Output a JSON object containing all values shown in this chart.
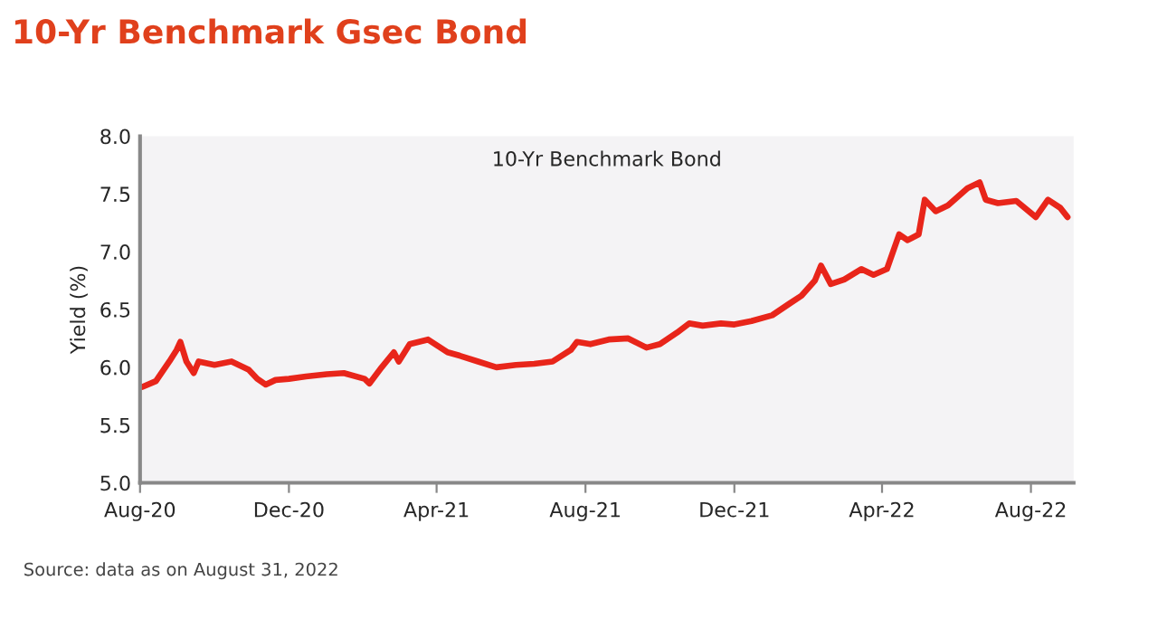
{
  "chart_data": {
    "type": "line",
    "title": "10-Yr Benchmark Gsec Bond",
    "subtitle": "10-Yr Benchmark Bond",
    "ylabel": "Yield (%)",
    "annotations": [
      "Source: data as on August 31, 2022"
    ],
    "x": [
      "2020-08-03",
      "2020-08-14",
      "2020-08-25",
      "2020-08-31",
      "2020-09-03",
      "2020-09-08",
      "2020-09-14",
      "2020-09-18",
      "2020-10-01",
      "2020-10-15",
      "2020-10-29",
      "2020-11-05",
      "2020-11-12",
      "2020-11-20",
      "2020-12-01",
      "2020-12-15",
      "2021-01-01",
      "2021-01-15",
      "2021-02-01",
      "2021-02-05",
      "2021-02-15",
      "2021-02-25",
      "2021-03-01",
      "2021-03-10",
      "2021-03-25",
      "2021-04-10",
      "2021-04-20",
      "2021-05-05",
      "2021-05-20",
      "2021-06-05",
      "2021-06-20",
      "2021-07-05",
      "2021-07-20",
      "2021-07-25",
      "2021-08-05",
      "2021-08-20",
      "2021-09-05",
      "2021-09-20",
      "2021-10-01",
      "2021-10-15",
      "2021-10-25",
      "2021-11-05",
      "2021-11-20",
      "2021-12-01",
      "2021-12-15",
      "2022-01-01",
      "2022-01-15",
      "2022-01-25",
      "2022-02-05",
      "2022-02-10",
      "2022-02-18",
      "2022-03-01",
      "2022-03-15",
      "2022-03-25",
      "2022-04-05",
      "2022-04-15",
      "2022-04-22",
      "2022-05-01",
      "2022-05-06",
      "2022-05-15",
      "2022-05-25",
      "2022-06-10",
      "2022-06-20",
      "2022-06-25",
      "2022-07-05",
      "2022-07-20",
      "2022-08-05",
      "2022-08-15",
      "2022-08-25",
      "2022-08-31"
    ],
    "series": [
      {
        "color": "#e8251a",
        "values": [
          5.83,
          5.88,
          6.05,
          6.15,
          6.22,
          6.05,
          5.95,
          6.05,
          6.02,
          6.05,
          5.98,
          5.9,
          5.85,
          5.89,
          5.9,
          5.92,
          5.94,
          5.95,
          5.9,
          5.86,
          6.0,
          6.13,
          6.05,
          6.2,
          6.24,
          6.13,
          6.1,
          6.05,
          6.0,
          6.02,
          6.03,
          6.05,
          6.15,
          6.22,
          6.2,
          6.24,
          6.25,
          6.17,
          6.2,
          6.3,
          6.38,
          6.36,
          6.38,
          6.37,
          6.4,
          6.45,
          6.55,
          6.62,
          6.75,
          6.88,
          6.72,
          6.76,
          6.85,
          6.8,
          6.85,
          7.15,
          7.1,
          7.15,
          7.45,
          7.35,
          7.4,
          7.55,
          7.6,
          7.45,
          7.42,
          7.44,
          7.3,
          7.45,
          7.38,
          7.3
        ]
      }
    ],
    "xlim": [
      "2020-08-01",
      "2022-09-05"
    ],
    "xticks": [
      {
        "value": "2020-08-01",
        "label": "Aug-20"
      },
      {
        "value": "2020-12-01",
        "label": "Dec-20"
      },
      {
        "value": "2021-04-01",
        "label": "Apr-21"
      },
      {
        "value": "2021-08-01",
        "label": "Aug-21"
      },
      {
        "value": "2021-12-01",
        "label": "Dec-21"
      },
      {
        "value": "2022-04-01",
        "label": "Apr-22"
      },
      {
        "value": "2022-08-01",
        "label": "Aug-22"
      }
    ],
    "ylim": [
      5.0,
      8.0
    ],
    "yticks": [
      {
        "value": 5.0,
        "label": "5.0"
      },
      {
        "value": 5.5,
        "label": "5.5"
      },
      {
        "value": 6.0,
        "label": "6.0"
      },
      {
        "value": 6.5,
        "label": "6.5"
      },
      {
        "value": 7.0,
        "label": "7.0"
      },
      {
        "value": 7.5,
        "label": "7.5"
      },
      {
        "value": 8.0,
        "label": "8.0"
      }
    ],
    "grid": false,
    "legend": false,
    "marker": "none",
    "line_style": "solid"
  }
}
